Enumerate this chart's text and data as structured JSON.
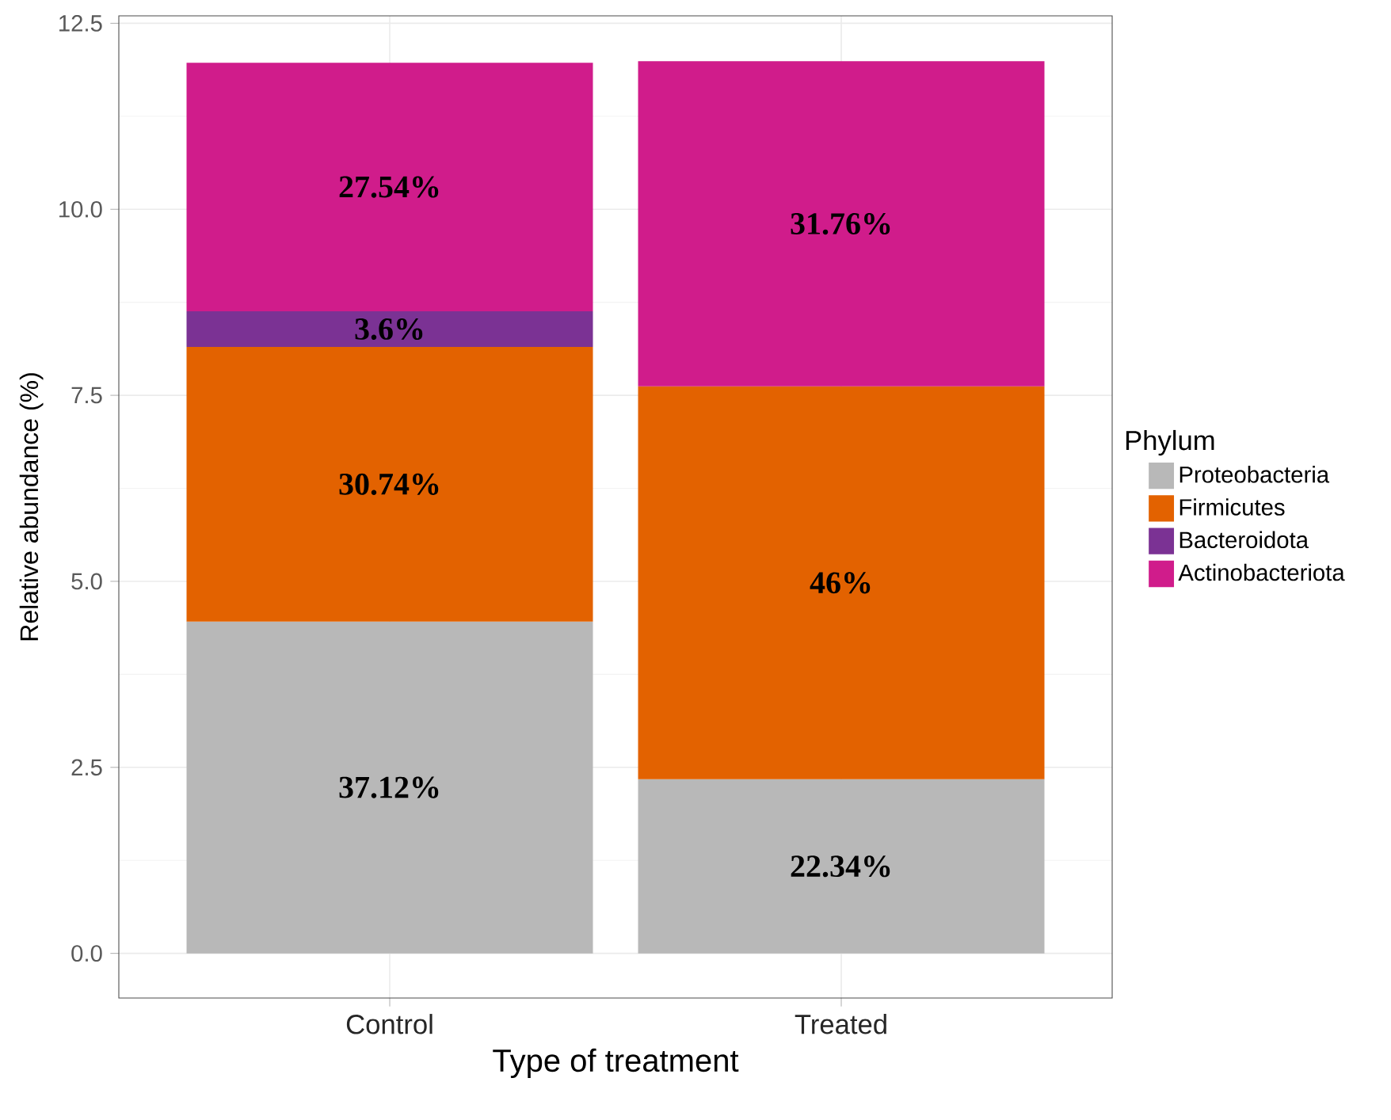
{
  "chart_data": {
    "type": "bar",
    "stacked": true,
    "xlabel": "Type of treatment",
    "ylabel": "Relative abundance (%)",
    "legend_title": "Phylum",
    "legend": "right",
    "grid": true,
    "categories": [
      "Control",
      "Treated"
    ],
    "series": [
      {
        "name": "Proteobacteria",
        "color": "#b8b8b8",
        "values": [
          4.46,
          2.34
        ]
      },
      {
        "name": "Firmicutes",
        "color": "#e36200",
        "values": [
          3.69,
          5.28
        ]
      },
      {
        "name": "Bacteroidota",
        "color": "#7b3294",
        "values": [
          0.48,
          null
        ]
      },
      {
        "name": "Actinobacteriota",
        "color": "#d01c8b",
        "values": [
          3.34,
          4.37
        ]
      }
    ],
    "annotations": [
      "37.12%",
      "30.74%",
      "3.6%",
      "27.54%",
      "22.34%",
      "46%",
      "31.76%"
    ],
    "ylim": [
      -0.6,
      12.6
    ],
    "yticks": [
      {
        "value": 0,
        "label": "0.0"
      },
      2.5,
      {
        "value": 5,
        "label": "5.0"
      },
      7.5,
      {
        "value": 10,
        "label": "10.0"
      },
      12.5
    ]
  }
}
